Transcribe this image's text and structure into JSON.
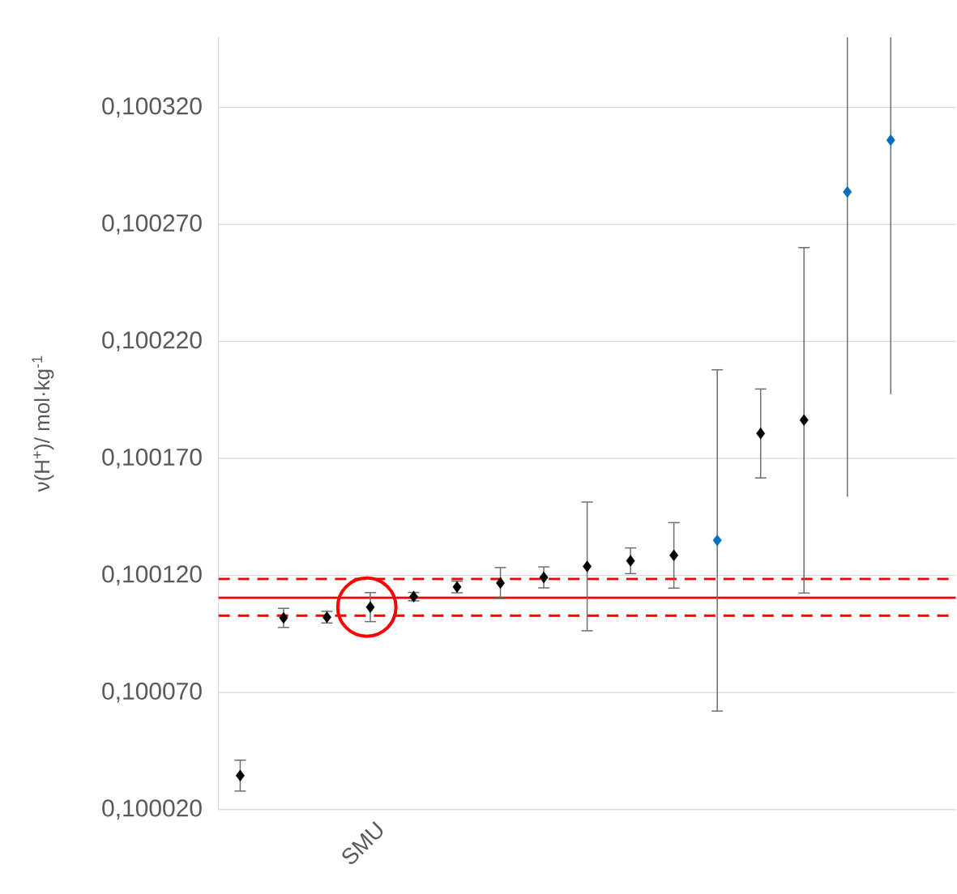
{
  "chart_data": {
    "type": "scatter",
    "ylabel": "ν(H$^{+}$)/ mol·kg$^{-1}$",
    "categories": [
      null,
      null,
      null,
      "SMU",
      null,
      null,
      null,
      null,
      null,
      null,
      null,
      null,
      null,
      null,
      null,
      null,
      null
    ],
    "values": [
      0.1000345,
      0.1001019,
      0.1001022,
      0.1001065,
      0.100111,
      0.1001151,
      0.1001168,
      0.1001192,
      0.1001239,
      0.1001263,
      0.1001286,
      0.100135,
      0.1001807,
      0.1001864,
      0.1002839,
      0.100306,
      null
    ],
    "errors": [
      6.6e-06,
      4.1e-06,
      2.5e-06,
      6.2e-06,
      1.8e-06,
      2.5e-06,
      6.6e-06,
      4.5e-06,
      2.75e-05,
      5.5e-06,
      1.4e-05,
      7.29e-05,
      1.9e-05,
      [
        0.1001125,
        0.1002601
      ],
      [
        0.1001537,
        0.10035
      ],
      [
        0.1001975,
        0.10035
      ],
      null
    ],
    "colors": [
      "#000000",
      "#000000",
      "#000000",
      "#000000",
      "#000000",
      "#000000",
      "#000000",
      "#000000",
      "#000000",
      "#000000",
      "#000000",
      "#0070c0",
      "#000000",
      "#000000",
      "#0070c0",
      "#0070c0",
      "#000000"
    ],
    "marker": "diamond",
    "ylim": [
      0.10002,
      0.10035
    ],
    "yticks": [
      {
        "value": 0.10002,
        "label": "0,100020"
      },
      {
        "value": 0.10007,
        "label": "0,100070"
      },
      {
        "value": 0.10012,
        "label": "0,100120"
      },
      {
        "value": 0.10017,
        "label": "0,100170"
      },
      {
        "value": 0.10022,
        "label": "0,100220"
      },
      {
        "value": 0.10027,
        "label": "0,100270"
      },
      {
        "value": 0.10032,
        "label": "0,100320"
      }
    ],
    "grid": "y",
    "ref_lines": [
      {
        "axis": "y",
        "value": 0.1001105,
        "color": "#ff0000",
        "line_style": "solid"
      },
      {
        "axis": "y",
        "value": 0.1001185,
        "color": "#ff0000",
        "line_style": "dashed"
      },
      {
        "axis": "y",
        "value": 0.1001029,
        "color": "#ff0000",
        "line_style": "dashed"
      }
    ]
  }
}
